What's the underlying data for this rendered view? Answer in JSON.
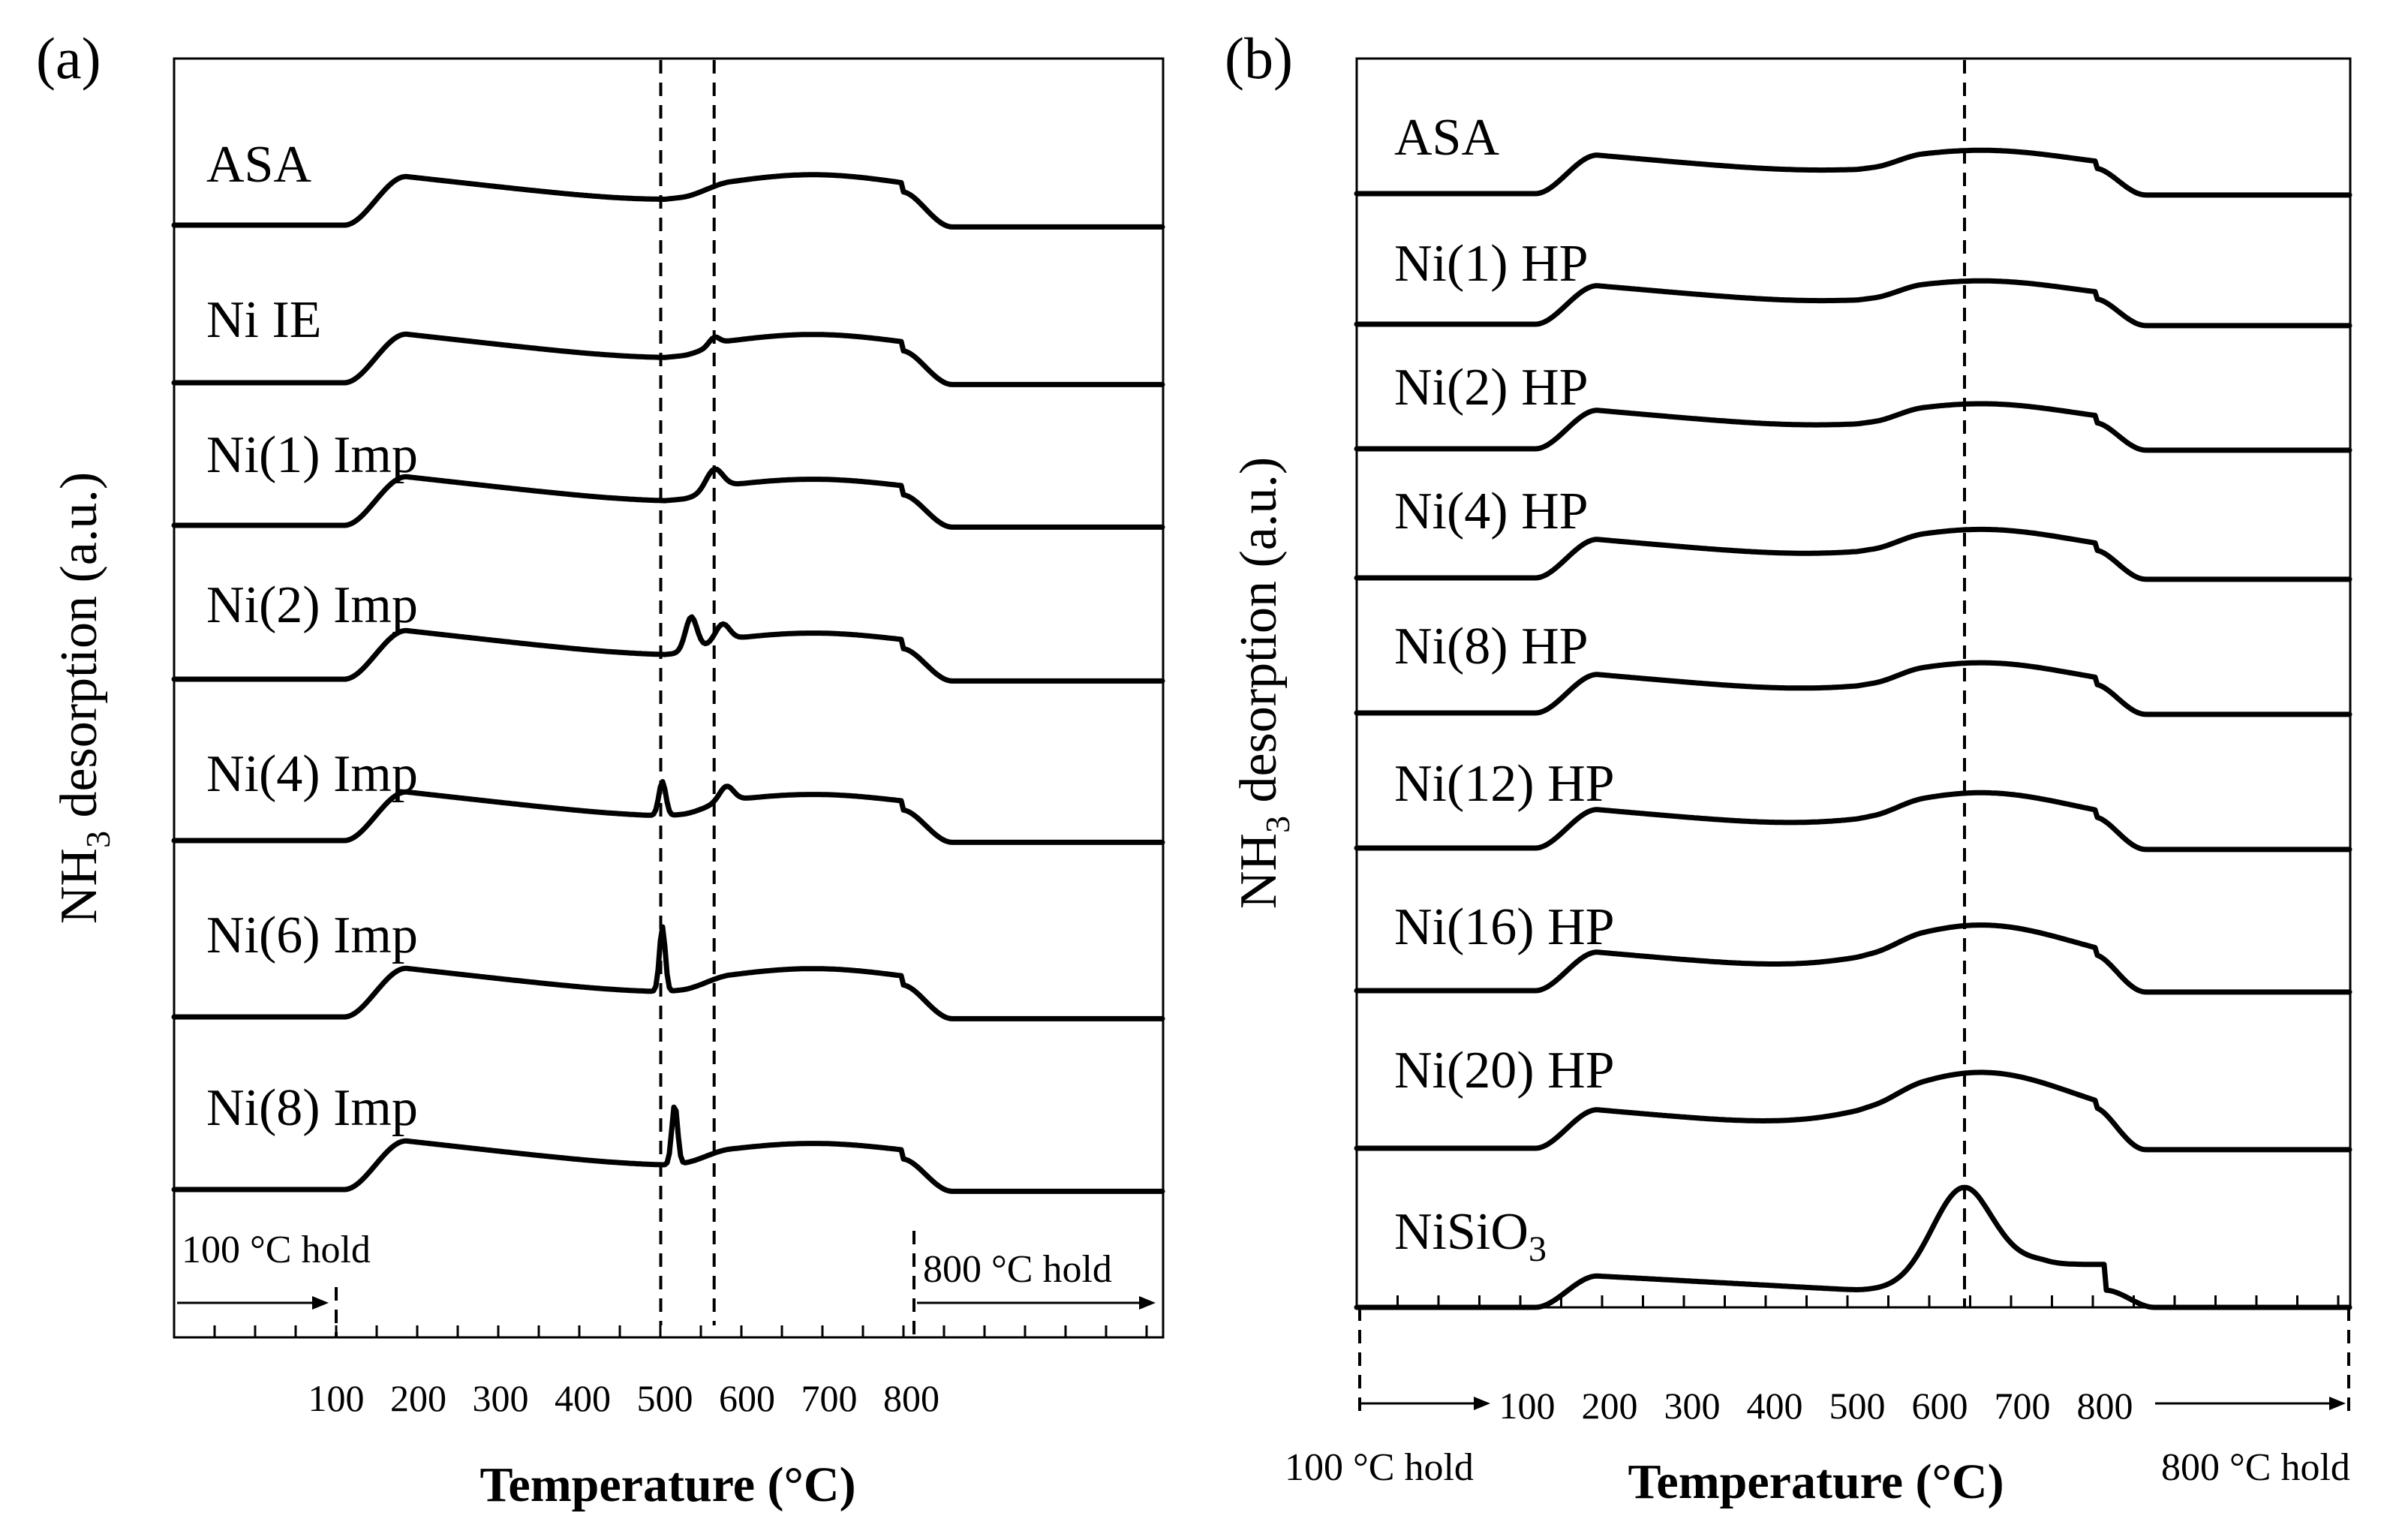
{
  "chart_data": [
    {
      "type": "line",
      "panel_label": "(a)",
      "xlabel": "Temperature (°C)",
      "ylabel_main": "NH",
      "ylabel_sub": "3",
      "ylabel_rest": " desorption (a.u.)",
      "tick_labels": [
        "100",
        "200",
        "300",
        "400",
        "500",
        "600",
        "700",
        "800"
      ],
      "tick_values": [
        100,
        200,
        300,
        400,
        500,
        600,
        700,
        800
      ],
      "hold_start_label": "100 °C hold",
      "hold_end_label": "800 °C hold",
      "reference_lines": [
        495,
        560
      ],
      "series": [
        {
          "name": "ASA",
          "peaks": [],
          "bump": 0.5,
          "drop": 0.0
        },
        {
          "name": "Ni IE",
          "peaks": [
            {
              "t": 560,
              "h": 0.22,
              "w": 9
            }
          ],
          "bump": 0.45,
          "drop": 0.0
        },
        {
          "name": "Ni(1) Imp",
          "peaks": [
            {
              "t": 560,
              "h": 0.55,
              "w": 14
            }
          ],
          "bump": 0.4,
          "drop": 0.0
        },
        {
          "name": "Ni(2) Imp",
          "peaks": [
            {
              "t": 532,
              "h": 0.95,
              "w": 10
            },
            {
              "t": 570,
              "h": 0.45,
              "w": 12
            }
          ],
          "bump": 0.4,
          "drop": 0.0
        },
        {
          "name": "Ni(4) Imp",
          "peaks": [
            {
              "t": 497,
              "h": 0.95,
              "w": 6
            },
            {
              "t": 575,
              "h": 0.4,
              "w": 12
            }
          ],
          "bump": 0.4,
          "drop": 0.0
        },
        {
          "name": "Ni(6) Imp",
          "peaks": [
            {
              "t": 497,
              "h": 1.8,
              "w": 5
            }
          ],
          "bump": 0.45,
          "drop": 0.0
        },
        {
          "name": "Ni(8) Imp",
          "peaks": [
            {
              "t": 512,
              "h": 1.65,
              "w": 5
            }
          ],
          "bump": 0.4,
          "drop": 0.0
        }
      ]
    },
    {
      "type": "line",
      "panel_label": "(b)",
      "xlabel": "Temperature (°C)",
      "ylabel_main": "NH",
      "ylabel_sub": "3",
      "ylabel_rest": " desorption (a.u.)",
      "tick_labels": [
        "100",
        "200",
        "300",
        "400",
        "500",
        "600",
        "700",
        "800"
      ],
      "tick_values": [
        100,
        200,
        300,
        400,
        500,
        600,
        700,
        800
      ],
      "hold_start_label": "100 °C hold",
      "hold_end_label": "800 °C hold",
      "reference_lines": [
        630
      ],
      "series": [
        {
          "name": "ASA",
          "peaks": [],
          "bump": 0.6,
          "drop": 0.0
        },
        {
          "name": "Ni(1) HP",
          "peaks": [],
          "bump": 0.6,
          "drop": 0.0
        },
        {
          "name": "Ni(2) HP",
          "peaks": [],
          "bump": 0.65,
          "drop": 0.0
        },
        {
          "name": "Ni(4) HP",
          "peaks": [],
          "bump": 0.75,
          "drop": 0.0
        },
        {
          "name": "Ni(8) HP",
          "peaks": [],
          "bump": 0.8,
          "drop": 0.0
        },
        {
          "name": "Ni(12) HP",
          "peaks": [],
          "bump": 0.95,
          "drop": 0.0
        },
        {
          "name": "Ni(16) HP",
          "peaks": [],
          "bump": 1.25,
          "drop": 0.0
        },
        {
          "name": "Ni(20) HP",
          "peaks": [],
          "bump": 1.55,
          "drop": 0.0
        },
        {
          "name_main": "NiSiO",
          "name_sub": "3",
          "name": "NiSiO3",
          "peaks": [],
          "bump": 3.6,
          "drop": 0.0
        }
      ]
    }
  ]
}
